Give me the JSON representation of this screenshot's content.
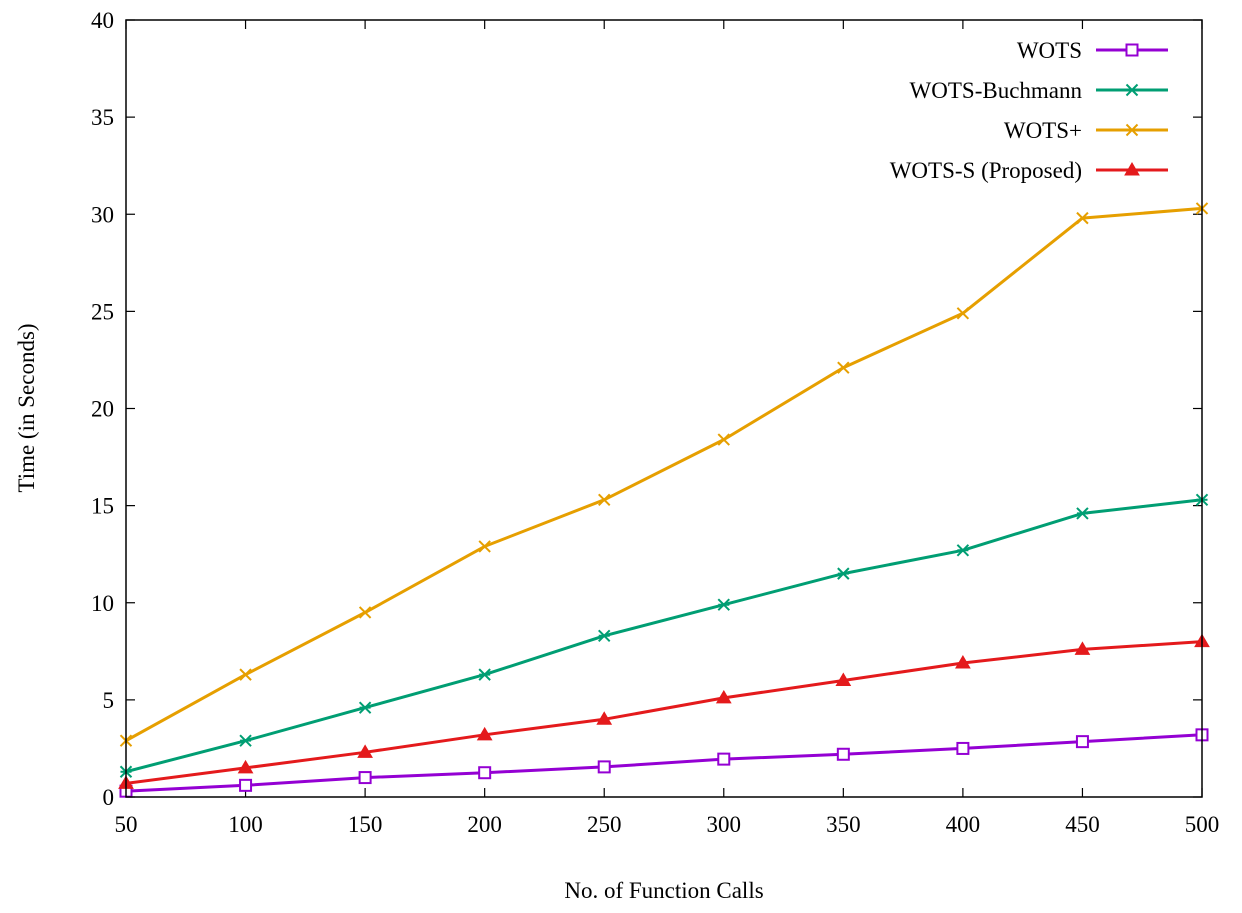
{
  "chart_data": {
    "type": "line",
    "title": "",
    "xlabel": "No. of Function Calls",
    "ylabel": "Time (in Seconds)",
    "xlim": [
      50,
      500
    ],
    "ylim": [
      0,
      40
    ],
    "x_ticks": [
      50,
      100,
      150,
      200,
      250,
      300,
      350,
      400,
      450,
      500
    ],
    "y_ticks": [
      0,
      5,
      10,
      15,
      20,
      25,
      30,
      35,
      40
    ],
    "grid": false,
    "legend_position": "top-right",
    "x": [
      50,
      100,
      150,
      200,
      250,
      300,
      350,
      400,
      450,
      500
    ],
    "series": [
      {
        "name": "WOTS",
        "color": "#9400d3",
        "marker": "open-square",
        "values": [
          0.3,
          0.6,
          1.0,
          1.25,
          1.55,
          1.95,
          2.2,
          2.5,
          2.85,
          3.2
        ]
      },
      {
        "name": "WOTS-Buchmann",
        "color": "#009e73",
        "marker": "asterisk",
        "values": [
          1.3,
          2.9,
          4.6,
          6.3,
          8.3,
          9.9,
          11.5,
          12.7,
          14.6,
          15.3
        ]
      },
      {
        "name": "WOTS+",
        "color": "#e69f00",
        "marker": "cross",
        "values": [
          2.9,
          6.3,
          9.5,
          12.9,
          15.3,
          18.4,
          22.1,
          24.9,
          29.8,
          30.3
        ]
      },
      {
        "name": "WOTS-S (Proposed)",
        "color": "#e41a1c",
        "marker": "filled-triangle",
        "values": [
          0.7,
          1.5,
          2.3,
          3.2,
          4.0,
          5.1,
          6.0,
          6.9,
          7.6,
          8.0
        ]
      }
    ]
  }
}
